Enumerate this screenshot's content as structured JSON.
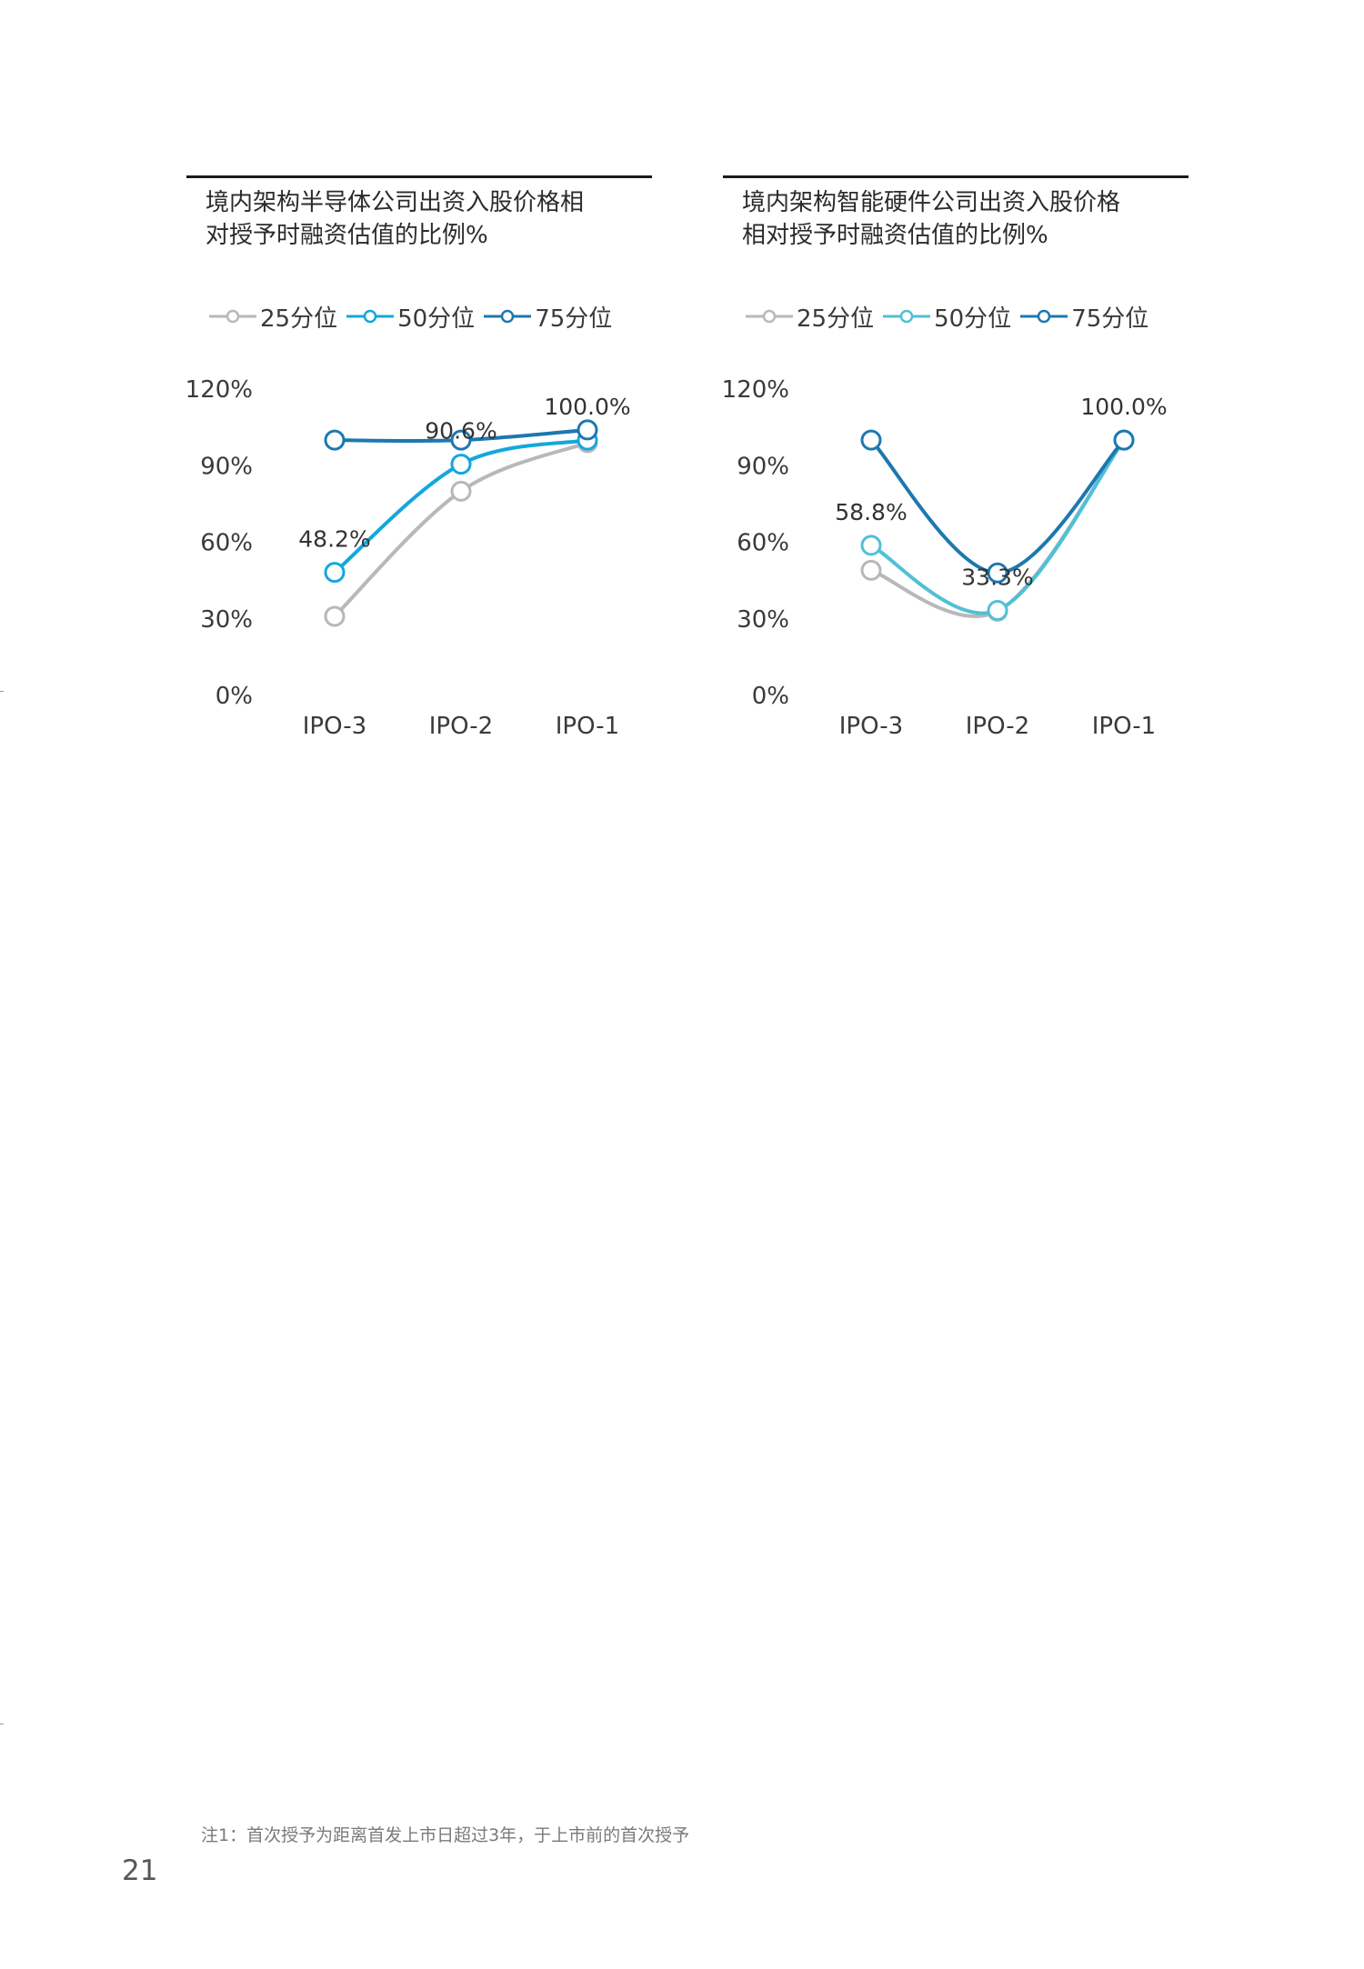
{
  "chart_data": [
    {
      "type": "line",
      "title_lines": [
        "境内架构半导体公司出资入股价格相",
        "对授予时融资估值的比例%"
      ],
      "categories": [
        "IPO-3",
        "IPO-2",
        "IPO-1"
      ],
      "ylim": [
        0,
        120
      ],
      "yticks": [
        0,
        30,
        60,
        90,
        120
      ],
      "ytick_labels": [
        "0%",
        "30%",
        "60%",
        "90%",
        "120%"
      ],
      "legend_position": "top",
      "grid": false,
      "series": [
        {
          "name": "25分位",
          "color": "#b8b8b8",
          "values": [
            31,
            80,
            99
          ]
        },
        {
          "name": "50分位",
          "color": "#13a8dc",
          "values": [
            48.2,
            90.6,
            100
          ]
        },
        {
          "name": "75分位",
          "color": "#1c78b0",
          "values": [
            100,
            100,
            104
          ]
        }
      ],
      "data_labels": [
        {
          "series": 1,
          "index": 0,
          "text": "48.2%"
        },
        {
          "series": 1,
          "index": 1,
          "text": "90.6%"
        },
        {
          "series": 1,
          "index": 2,
          "text": "100.0%"
        }
      ]
    },
    {
      "type": "line",
      "title_lines": [
        "境内架构智能硬件公司出资入股价格",
        "相对授予时融资估值的比例%"
      ],
      "categories": [
        "IPO-3",
        "IPO-2",
        "IPO-1"
      ],
      "ylim": [
        0,
        120
      ],
      "yticks": [
        0,
        30,
        60,
        90,
        120
      ],
      "ytick_labels": [
        "0%",
        "30%",
        "60%",
        "90%",
        "120%"
      ],
      "legend_position": "top",
      "grid": false,
      "series": [
        {
          "name": "25分位",
          "color": "#b8b8b8",
          "values": [
            49,
            33,
            100
          ]
        },
        {
          "name": "50分位",
          "color": "#50c0d6",
          "values": [
            58.8,
            33.3,
            100
          ]
        },
        {
          "name": "75分位",
          "color": "#1c78b0",
          "values": [
            100,
            48,
            100
          ]
        }
      ],
      "data_labels": [
        {
          "series": 1,
          "index": 0,
          "text": "58.8%"
        },
        {
          "series": 1,
          "index": 1,
          "text": "33.3%"
        },
        {
          "series": 1,
          "index": 2,
          "text": "100.0%"
        }
      ]
    }
  ],
  "footnote": "注1：首次授予为距离首发上市日超过3年，于上市前的首次授予",
  "page_number": "21"
}
